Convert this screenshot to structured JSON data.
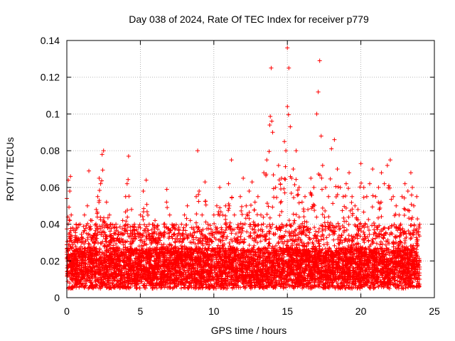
{
  "chart_data": {
    "type": "scatter",
    "title": "Day 038 of 2024, Rate Of TEC Index for receiver p779",
    "xlabel": "GPS time / hours",
    "ylabel": "ROTI / TECUs",
    "xlim": [
      0,
      25
    ],
    "ylim": [
      0,
      0.14
    ],
    "x_ticks": [
      0,
      5,
      10,
      15,
      20,
      25
    ],
    "x_tick_labels": [
      "0",
      "5",
      "10",
      "15",
      "20",
      "25"
    ],
    "y_ticks": [
      0,
      0.02,
      0.04,
      0.06,
      0.08,
      0.1,
      0.12,
      0.14
    ],
    "y_tick_labels": [
      "0",
      "0.02",
      "0.04",
      "0.06",
      "0.08",
      "0.1",
      "0.12",
      "0.14"
    ],
    "grid": true,
    "marker": "+",
    "color": "#ff0000",
    "series": [
      {
        "name": "ROTI",
        "x": [
          0.0,
          0.1,
          0.2,
          0.25,
          0.3,
          0.4,
          0.5,
          0.6,
          0.7,
          0.8,
          0.9,
          1.0,
          1.2,
          1.4,
          1.5,
          1.7,
          1.9,
          2.0,
          2.1,
          2.2,
          2.3,
          2.4,
          2.5,
          2.7,
          2.9,
          3.0,
          3.2,
          3.4,
          3.6,
          3.8,
          4.0,
          4.1,
          4.2,
          4.4,
          4.6,
          4.8,
          5.0,
          5.2,
          5.4,
          5.6,
          5.8,
          6.0,
          6.2,
          6.4,
          6.6,
          6.8,
          7.0,
          7.2,
          7.4,
          7.6,
          7.8,
          8.0,
          8.2,
          8.4,
          8.6,
          8.8,
          8.9,
          9.0,
          9.2,
          9.4,
          9.6,
          9.8,
          10.0,
          10.2,
          10.4,
          10.6,
          10.8,
          11.0,
          11.2,
          11.4,
          11.6,
          11.8,
          12.0,
          12.2,
          12.4,
          12.6,
          12.8,
          13.0,
          13.2,
          13.4,
          13.6,
          13.8,
          13.9,
          14.0,
          14.2,
          14.4,
          14.6,
          14.8,
          14.9,
          15.0,
          15.1,
          15.2,
          15.4,
          15.6,
          15.8,
          16.0,
          16.2,
          16.4,
          16.6,
          16.8,
          17.0,
          17.1,
          17.2,
          17.3,
          17.4,
          17.6,
          17.8,
          18.0,
          18.2,
          18.4,
          18.6,
          18.8,
          19.0,
          19.2,
          19.4,
          19.6,
          19.8,
          20.0,
          20.2,
          20.4,
          20.6,
          20.8,
          21.0,
          21.2,
          21.4,
          21.6,
          21.8,
          22.0,
          22.2,
          22.4,
          22.6,
          22.8,
          23.0,
          23.2,
          23.4,
          23.5,
          23.6,
          23.8,
          24.0
        ],
        "y": [
          0.054,
          0.064,
          0.058,
          0.066,
          0.045,
          0.038,
          0.03,
          0.028,
          0.025,
          0.032,
          0.04,
          0.03,
          0.045,
          0.05,
          0.069,
          0.042,
          0.035,
          0.048,
          0.055,
          0.065,
          0.062,
          0.078,
          0.08,
          0.052,
          0.045,
          0.04,
          0.035,
          0.038,
          0.032,
          0.042,
          0.055,
          0.062,
          0.077,
          0.048,
          0.04,
          0.035,
          0.045,
          0.058,
          0.064,
          0.04,
          0.035,
          0.042,
          0.03,
          0.035,
          0.04,
          0.059,
          0.045,
          0.038,
          0.032,
          0.035,
          0.04,
          0.045,
          0.05,
          0.042,
          0.038,
          0.055,
          0.08,
          0.058,
          0.045,
          0.063,
          0.04,
          0.035,
          0.045,
          0.05,
          0.06,
          0.045,
          0.05,
          0.062,
          0.075,
          0.045,
          0.038,
          0.055,
          0.065,
          0.05,
          0.058,
          0.063,
          0.052,
          0.055,
          0.045,
          0.068,
          0.075,
          0.094,
          0.125,
          0.09,
          0.06,
          0.072,
          0.065,
          0.085,
          0.08,
          0.136,
          0.125,
          0.093,
          0.07,
          0.08,
          0.06,
          0.052,
          0.055,
          0.048,
          0.065,
          0.06,
          0.1,
          0.112,
          0.129,
          0.088,
          0.072,
          0.06,
          0.055,
          0.081,
          0.086,
          0.07,
          0.06,
          0.055,
          0.062,
          0.068,
          0.055,
          0.05,
          0.048,
          0.073,
          0.06,
          0.055,
          0.062,
          0.07,
          0.055,
          0.06,
          0.068,
          0.062,
          0.072,
          0.075,
          0.055,
          0.05,
          0.045,
          0.055,
          0.062,
          0.058,
          0.068,
          0.06,
          0.05,
          0.055,
          0.04
        ]
      }
    ]
  }
}
